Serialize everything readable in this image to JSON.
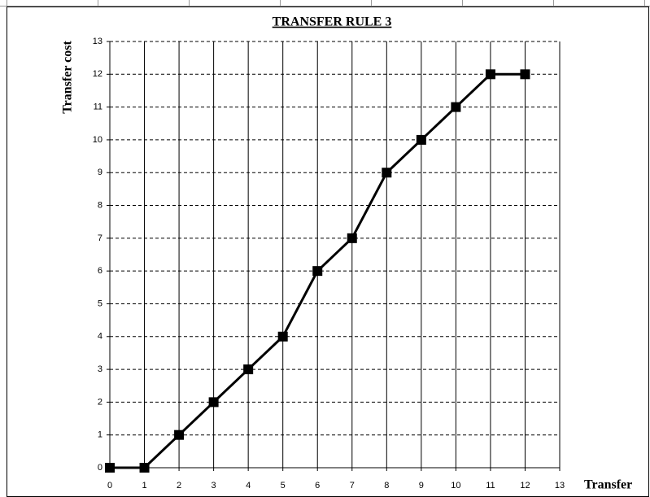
{
  "chart_data": {
    "type": "line",
    "title": "TRANSFER RULE 3",
    "xlabel": "Transfer",
    "ylabel": "Transfer cost",
    "x": [
      0,
      1,
      2,
      3,
      4,
      5,
      6,
      7,
      8,
      9,
      10,
      11,
      12
    ],
    "series": [
      {
        "name": "Transfer cost",
        "color": "#000000",
        "values": [
          0,
          0,
          1,
          2,
          3,
          4,
          6,
          7,
          9,
          10,
          11,
          12,
          12
        ]
      }
    ],
    "xlim": [
      0,
      13
    ],
    "xticks": [
      0,
      1,
      2,
      3,
      4,
      5,
      6,
      7,
      8,
      9,
      10,
      11,
      12,
      13
    ],
    "ylim": [
      0,
      13
    ],
    "yticks": [
      0,
      1,
      2,
      3,
      4,
      5,
      6,
      7,
      8,
      9,
      10,
      11,
      12,
      13
    ],
    "grid": true,
    "legend": false,
    "marker": "square"
  }
}
